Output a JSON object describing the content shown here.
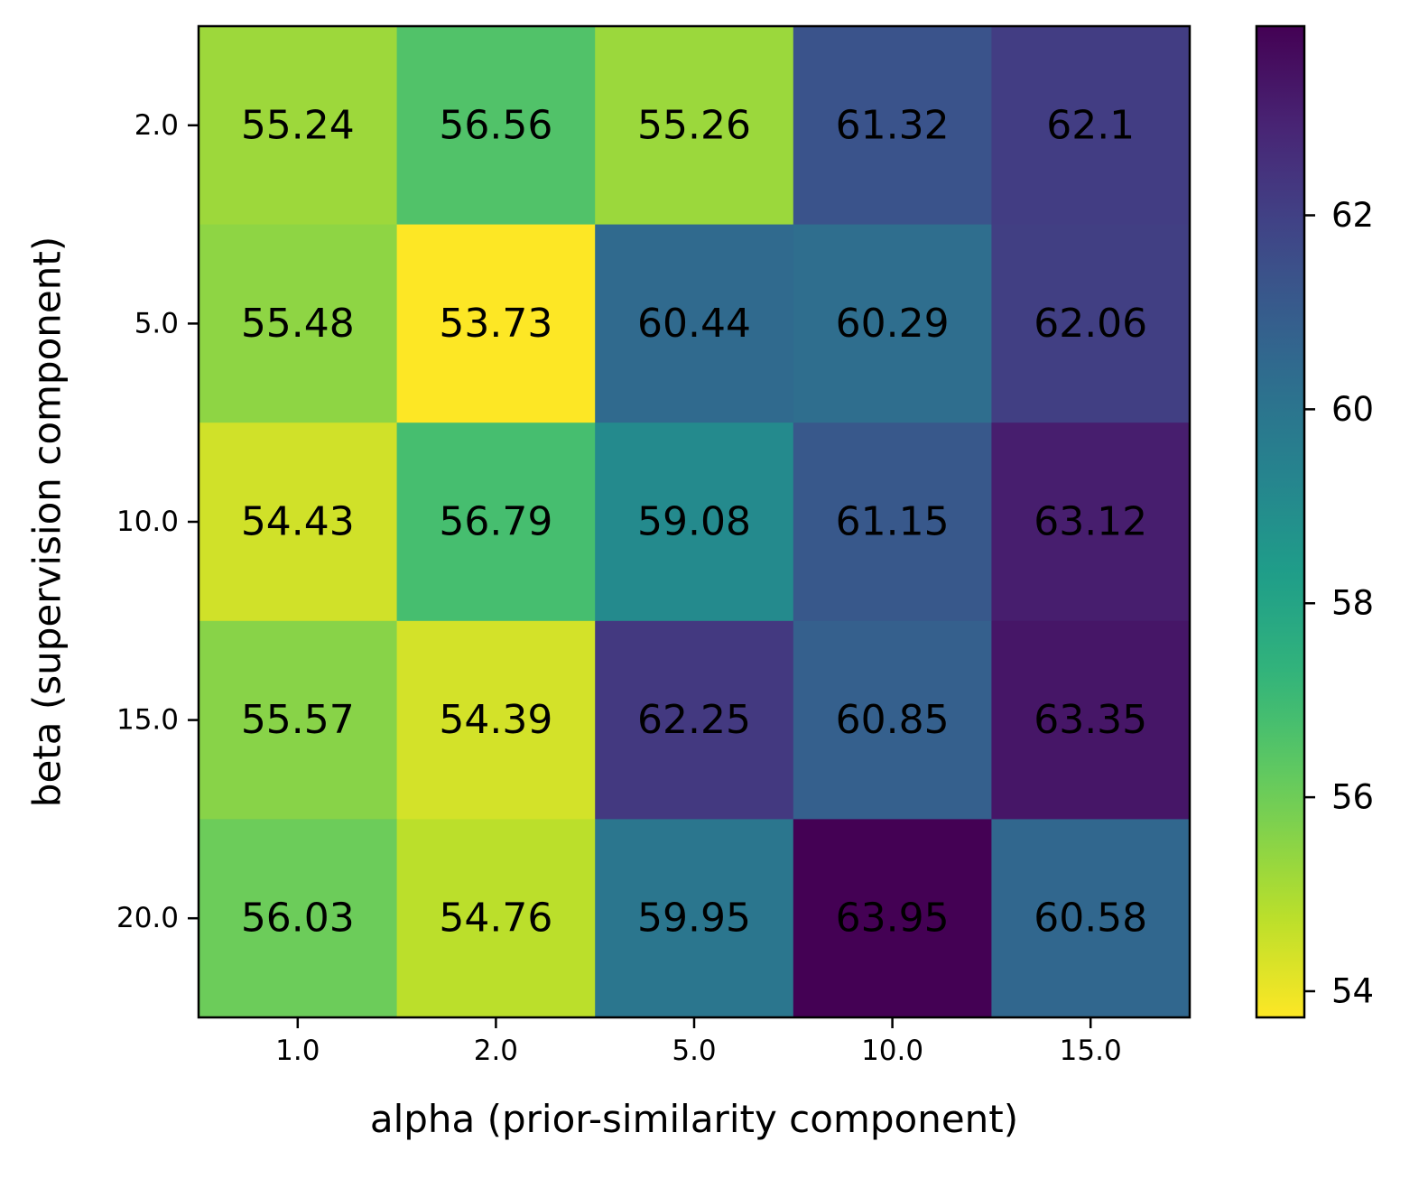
{
  "chart_data": {
    "type": "heatmap",
    "xlabel": "alpha (prior-similarity component)",
    "ylabel": "beta (supervision component)",
    "x_categories": [
      "1.0",
      "2.0",
      "5.0",
      "10.0",
      "15.0"
    ],
    "y_categories": [
      "2.0",
      "5.0",
      "10.0",
      "15.0",
      "20.0"
    ],
    "values": [
      [
        55.24,
        56.56,
        55.26,
        61.32,
        62.1
      ],
      [
        55.48,
        53.73,
        60.44,
        60.29,
        62.06
      ],
      [
        54.43,
        56.79,
        59.08,
        61.15,
        63.12
      ],
      [
        55.57,
        54.39,
        62.25,
        60.85,
        63.35
      ],
      [
        56.03,
        54.76,
        59.95,
        63.95,
        60.58
      ]
    ],
    "cell_labels": [
      [
        "55.24",
        "56.56",
        "55.26",
        "61.32",
        "62.1"
      ],
      [
        "55.48",
        "53.73",
        "60.44",
        "60.29",
        "62.06"
      ],
      [
        "54.43",
        "56.79",
        "59.08",
        "61.15",
        "63.12"
      ],
      [
        "55.57",
        "54.39",
        "62.25",
        "60.85",
        "63.35"
      ],
      [
        "56.03",
        "54.76",
        "59.95",
        "63.95",
        "60.58"
      ]
    ],
    "colormap": "viridis_r",
    "colorbar": {
      "range": [
        53.73,
        63.95
      ],
      "ticks": [
        54,
        56,
        58,
        60,
        62
      ],
      "tick_labels": [
        "54",
        "56",
        "58",
        "60",
        "62"
      ]
    },
    "grid": false
  }
}
